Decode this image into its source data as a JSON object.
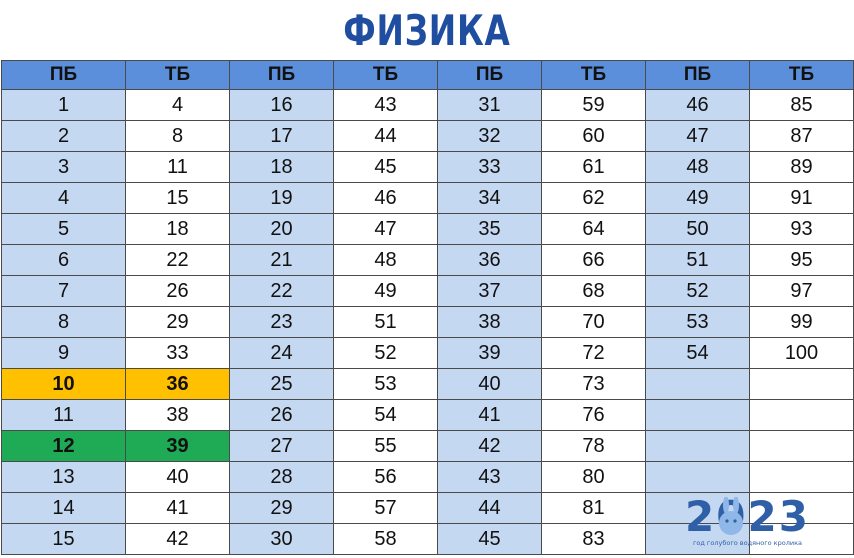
{
  "title": "ФИЗИКА",
  "headers": [
    "ПБ",
    "ТБ",
    "ПБ",
    "ТБ",
    "ПБ",
    "ТБ",
    "ПБ",
    "ТБ"
  ],
  "rows": [
    [
      "1",
      "4",
      "16",
      "43",
      "31",
      "59",
      "46",
      "85"
    ],
    [
      "2",
      "8",
      "17",
      "44",
      "32",
      "60",
      "47",
      "87"
    ],
    [
      "3",
      "11",
      "18",
      "45",
      "33",
      "61",
      "48",
      "89"
    ],
    [
      "4",
      "15",
      "19",
      "46",
      "34",
      "62",
      "49",
      "91"
    ],
    [
      "5",
      "18",
      "20",
      "47",
      "35",
      "64",
      "50",
      "93"
    ],
    [
      "6",
      "22",
      "21",
      "48",
      "36",
      "66",
      "51",
      "95"
    ],
    [
      "7",
      "26",
      "22",
      "49",
      "37",
      "68",
      "52",
      "97"
    ],
    [
      "8",
      "29",
      "23",
      "51",
      "38",
      "70",
      "53",
      "99"
    ],
    [
      "9",
      "33",
      "24",
      "52",
      "39",
      "72",
      "54",
      "100"
    ],
    [
      "10",
      "36",
      "25",
      "53",
      "40",
      "73",
      "",
      ""
    ],
    [
      "11",
      "38",
      "26",
      "54",
      "41",
      "76",
      "",
      ""
    ],
    [
      "12",
      "39",
      "27",
      "55",
      "42",
      "78",
      "",
      ""
    ],
    [
      "13",
      "40",
      "28",
      "56",
      "43",
      "80",
      "",
      ""
    ],
    [
      "14",
      "41",
      "29",
      "57",
      "44",
      "81",
      "",
      ""
    ],
    [
      "15",
      "42",
      "30",
      "58",
      "45",
      "83",
      "",
      ""
    ]
  ],
  "highlights": {
    "yellow_row": 9,
    "green_row": 11
  },
  "colors": {
    "header": "#5b8fdc",
    "pb_cell": "#c5d8f1",
    "title": "#1f4ea1",
    "yellow": "#ffc000",
    "green": "#1faa55"
  },
  "logo": {
    "number": "2023",
    "caption": "год голубого водяного кролика"
  }
}
